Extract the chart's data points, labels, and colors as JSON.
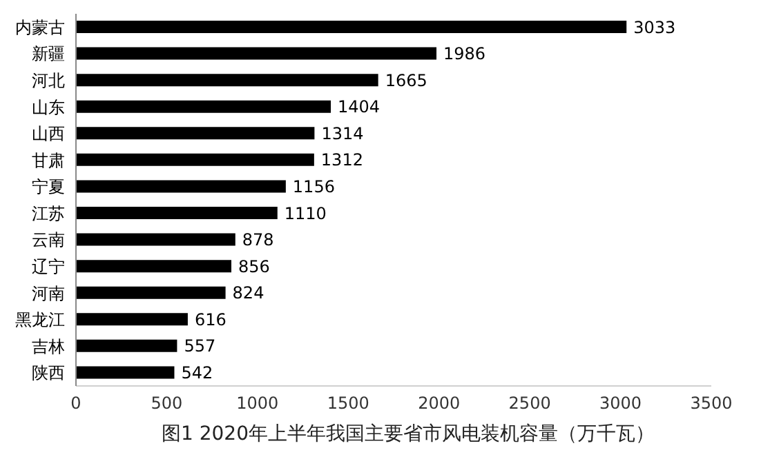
{
  "chart_data": {
    "type": "bar",
    "orientation": "horizontal",
    "title": "图1  2020年上半年我国主要省市风电装机容量（万千瓦）",
    "categories": [
      "内蒙古",
      "新疆",
      "河北",
      "山东",
      "山西",
      "甘肃",
      "宁夏",
      "江苏",
      "云南",
      "辽宁",
      "河南",
      "黑龙江",
      "吉林",
      "陕西"
    ],
    "values": [
      3033,
      1986,
      1665,
      1404,
      1314,
      1312,
      1156,
      1110,
      878,
      856,
      824,
      616,
      557,
      542
    ],
    "color": "#000000",
    "data_labels": true,
    "xlim": [
      0,
      3500
    ],
    "xticks": [
      0,
      500,
      1000,
      1500,
      2000,
      2500,
      3000,
      3500
    ],
    "grid": false,
    "legend": false
  }
}
